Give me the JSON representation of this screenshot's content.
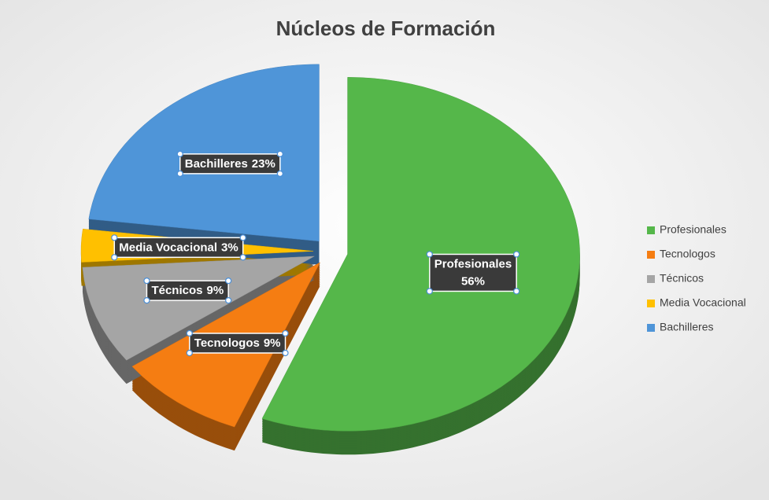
{
  "chart_data": {
    "type": "pie",
    "title": "Núcleos de Formación",
    "categories": [
      "Profesionales",
      "Tecnologos",
      "Técnicos",
      "Media Vocacional",
      "Bachilleres"
    ],
    "values": [
      56,
      9,
      9,
      3,
      23
    ],
    "value_labels": [
      "56%",
      "9%",
      "9%",
      "3%",
      "23%"
    ],
    "colors": [
      "#55b74a",
      "#f57d12",
      "#a5a5a5",
      "#ffc000",
      "#4f95d8"
    ],
    "legend": "right"
  }
}
